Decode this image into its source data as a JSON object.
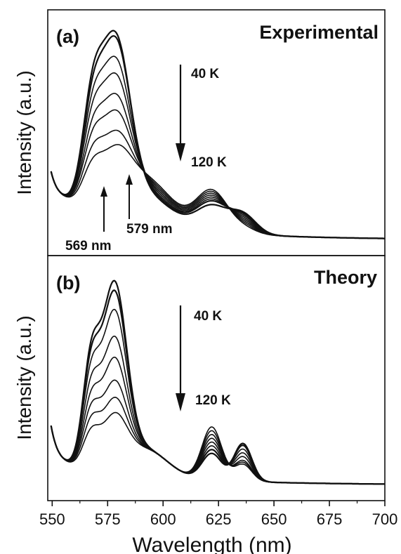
{
  "figure": {
    "xlabel": "Wavelength (nm)",
    "xticks": [
      "550",
      "575",
      "600",
      "625",
      "650",
      "675",
      "700"
    ]
  },
  "chart_data": [
    {
      "type": "line",
      "panel_label": "(a)",
      "title": "Experimental",
      "ylabel": "Intensity (a.u.)",
      "xlabel": "",
      "xlim": [
        548,
        700
      ],
      "ylim": [
        0,
        1
      ],
      "y_ticks_shown": false,
      "legend": "none",
      "annotations": {
        "arrow_top_label": "40 K",
        "arrow_bottom_label": "120 K",
        "peak_labels": [
          {
            "text": "569 nm",
            "x": 569
          },
          {
            "text": "579 nm",
            "x": 579
          }
        ]
      },
      "curve_params": {
        "x_start": 549.5,
        "x_end": 700,
        "a1": [
          0.48,
          0.44,
          0.4,
          0.36,
          0.31,
          0.27,
          0.22,
          0.17
        ],
        "a2": [
          0.86,
          0.83,
          0.72,
          0.63,
          0.52,
          0.43,
          0.32,
          0.24
        ],
        "a3": [
          0.13,
          0.15,
          0.16,
          0.17,
          0.18,
          0.19,
          0.2,
          0.21
        ],
        "a4": [
          0.1,
          0.09,
          0.08,
          0.07,
          0.06,
          0.05,
          0.04,
          0.03
        ]
      }
    },
    {
      "type": "line",
      "panel_label": "(b)",
      "title": "Theory",
      "ylabel": "Intensity (a.u.)",
      "xlabel": "Wavelength (nm)",
      "xlim": [
        548,
        700
      ],
      "ylim": [
        0,
        1
      ],
      "y_ticks_shown": false,
      "legend": "none",
      "annotations": {
        "arrow_top_label": "40 K",
        "arrow_bottom_label": "120 K"
      },
      "curve_params": {
        "x_start": 549.5,
        "x_end": 700,
        "a1": [
          0.52,
          0.49,
          0.44,
          0.38,
          0.32,
          0.27,
          0.22,
          0.17
        ],
        "a2": [
          0.95,
          0.9,
          0.8,
          0.66,
          0.55,
          0.43,
          0.34,
          0.26
        ],
        "a3": [
          0.14,
          0.16,
          0.18,
          0.2,
          0.22,
          0.24,
          0.26,
          0.28
        ],
        "a4": [
          0.2,
          0.19,
          0.17,
          0.15,
          0.13,
          0.11,
          0.1,
          0.09
        ]
      }
    }
  ]
}
